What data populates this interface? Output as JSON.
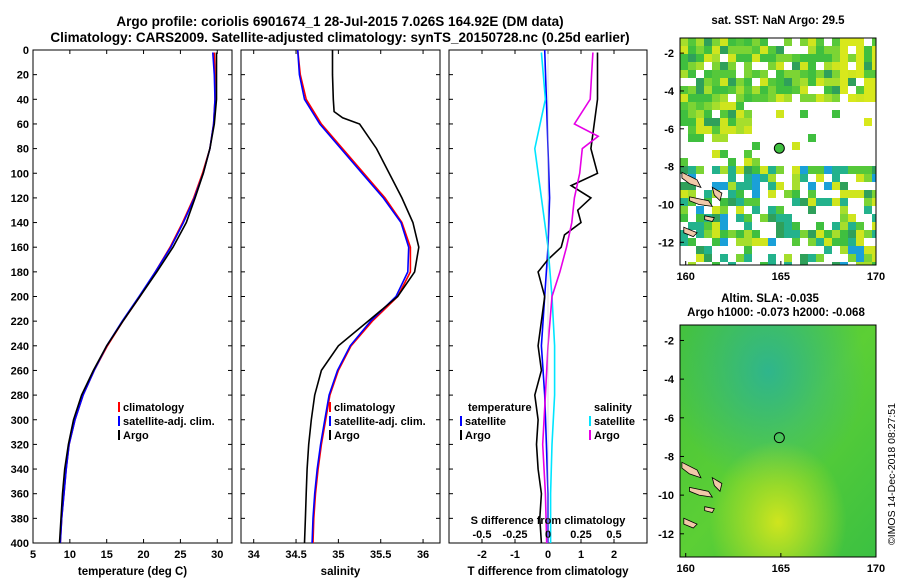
{
  "header": {
    "title_line1": "Argo profile: coriolis 6901674_1 28-Jul-2015 7.026S 164.92E (DM data)",
    "title_line2": "Climatology: CARS2009. Satellite-adjusted climatology: synTS_20150728.nc (0.25d earlier)"
  },
  "stamp": "©IMOS 14-Dec-2018 08:27:51",
  "colors": {
    "climatology": "#ff0000",
    "satellite": "#0000ff",
    "argo": "#000000",
    "s_satellite": "#00e5ff",
    "s_argo": "#e600e6"
  },
  "chart_data": [
    {
      "type": "line",
      "id": "temperature",
      "xlabel": "temperature (deg C)",
      "xlim": [
        5,
        32
      ],
      "ylim": [
        400,
        0
      ],
      "xticks": [
        5,
        10,
        15,
        20,
        25,
        30
      ],
      "yticks": [
        0,
        20,
        40,
        60,
        80,
        100,
        120,
        140,
        160,
        180,
        200,
        220,
        240,
        260,
        280,
        300,
        320,
        340,
        360,
        380,
        400
      ],
      "legend": [
        "climatology",
        "satellite-adj. clim.",
        "Argo"
      ],
      "series": [
        {
          "name": "climatology",
          "color": "#ff0000",
          "depth": [
            2,
            20,
            40,
            60,
            80,
            100,
            120,
            140,
            160,
            180,
            200,
            220,
            240,
            260,
            280,
            300,
            320,
            340,
            360,
            380,
            400
          ],
          "values": [
            29.6,
            29.7,
            29.7,
            29.5,
            29.0,
            28.0,
            26.8,
            25.3,
            23.6,
            21.6,
            19.5,
            17.2,
            15.1,
            13.3,
            11.8,
            10.7,
            9.9,
            9.5,
            9.2,
            8.9,
            8.7
          ]
        },
        {
          "name": "satellite",
          "color": "#0000ff",
          "depth": [
            2,
            20,
            40,
            60,
            80,
            100,
            120,
            140,
            160,
            180,
            200,
            220,
            240,
            260,
            280,
            300,
            320,
            340,
            360,
            380,
            400
          ],
          "values": [
            29.4,
            29.6,
            29.7,
            29.5,
            29.0,
            28.1,
            26.9,
            25.4,
            23.7,
            21.6,
            19.4,
            17.1,
            15.0,
            13.3,
            11.8,
            10.7,
            9.9,
            9.5,
            9.2,
            8.9,
            8.7
          ]
        },
        {
          "name": "Argo",
          "color": "#000000",
          "depth": [
            2,
            20,
            40,
            60,
            80,
            100,
            120,
            140,
            160,
            180,
            200,
            220,
            240,
            260,
            280,
            300,
            320,
            340,
            360,
            380,
            400
          ],
          "values": [
            29.9,
            29.9,
            29.9,
            29.6,
            29.0,
            28.1,
            27.0,
            25.8,
            24.0,
            21.8,
            19.5,
            17.2,
            15.0,
            13.2,
            11.6,
            10.5,
            9.8,
            9.3,
            9.0,
            8.8,
            8.6
          ]
        }
      ]
    },
    {
      "type": "line",
      "id": "salinity",
      "xlabel": "salinity",
      "xlim": [
        33.85,
        36.2
      ],
      "ylim": [
        400,
        0
      ],
      "xticks": [
        34,
        34.5,
        35,
        35.5,
        36
      ],
      "legend": [
        "climatology",
        "satellite-adj. clim.",
        "Argo"
      ],
      "series": [
        {
          "name": "climatology",
          "color": "#ff0000",
          "depth": [
            0,
            20,
            40,
            60,
            80,
            100,
            120,
            140,
            160,
            180,
            200,
            220,
            240,
            260,
            280,
            300,
            320,
            340,
            360,
            380,
            400
          ],
          "values": [
            34.52,
            34.55,
            34.62,
            34.8,
            35.05,
            35.3,
            35.55,
            35.75,
            35.85,
            35.85,
            35.7,
            35.4,
            35.15,
            35.0,
            34.9,
            34.85,
            34.8,
            34.76,
            34.73,
            34.71,
            34.7
          ]
        },
        {
          "name": "satellite",
          "color": "#0000ff",
          "depth": [
            0,
            20,
            40,
            60,
            80,
            100,
            120,
            140,
            160,
            180,
            200,
            220,
            240,
            260,
            280,
            300,
            320,
            340,
            360,
            380,
            400
          ],
          "values": [
            34.52,
            34.54,
            34.6,
            34.78,
            35.03,
            35.28,
            35.53,
            35.74,
            35.83,
            35.82,
            35.68,
            35.38,
            35.14,
            34.99,
            34.89,
            34.84,
            34.79,
            34.75,
            34.72,
            34.7,
            34.69
          ]
        },
        {
          "name": "Argo",
          "color": "#000000",
          "depth": [
            0,
            20,
            40,
            50,
            55,
            60,
            80,
            100,
            120,
            140,
            160,
            180,
            200,
            220,
            240,
            260,
            280,
            300,
            320,
            340,
            360,
            380,
            400
          ],
          "values": [
            34.93,
            34.93,
            34.94,
            34.95,
            35.05,
            35.25,
            35.45,
            35.6,
            35.75,
            35.88,
            35.95,
            35.9,
            35.7,
            35.35,
            35.0,
            34.8,
            34.72,
            34.68,
            34.65,
            34.63,
            34.62,
            34.61,
            34.6
          ]
        }
      ]
    },
    {
      "type": "line",
      "id": "difference",
      "xlabel": "T difference from climatology",
      "xlim": [
        -3,
        3
      ],
      "ylim": [
        400,
        0
      ],
      "xticks": [
        -2,
        -1,
        0,
        1,
        2
      ],
      "top_axis_label": "S difference from climatology",
      "top_ticks": [
        "-0.5",
        "-0.25",
        "0",
        "0.25",
        "0.5"
      ],
      "legend_left_title": "temperature",
      "legend_right_title": "salinity",
      "legend": [
        "satellite",
        "Argo",
        "satellite",
        "Argo"
      ],
      "series": [
        {
          "name": "T satellite",
          "color": "#0000ff",
          "depth": [
            0,
            40,
            80,
            120,
            160,
            200,
            240,
            280,
            320,
            360,
            400
          ],
          "values": [
            -0.1,
            -0.05,
            0.0,
            0.05,
            0.0,
            -0.1,
            -0.2,
            -0.1,
            -0.05,
            0.0,
            0.0
          ]
        },
        {
          "name": "T Argo",
          "color": "#000000",
          "depth": [
            2,
            20,
            40,
            60,
            80,
            100,
            110,
            120,
            130,
            140,
            150,
            160,
            170,
            180,
            200,
            220,
            240,
            260,
            280,
            300,
            320,
            340,
            360,
            380,
            400
          ],
          "values": [
            1.5,
            1.5,
            1.5,
            1.4,
            1.3,
            1.5,
            0.7,
            1.3,
            0.9,
            1.0,
            0.5,
            0.4,
            0.0,
            -0.3,
            -0.1,
            -0.2,
            -0.3,
            -0.2,
            -0.4,
            -0.3,
            -0.35,
            -0.3,
            -0.2,
            -0.25,
            -0.2
          ]
        },
        {
          "name": "S satellite",
          "color": "#00e5ff",
          "depth": [
            2,
            40,
            80,
            120,
            160,
            200,
            240,
            280,
            320,
            360,
            400
          ],
          "values": [
            -0.05,
            -0.02,
            -0.1,
            -0.05,
            0.0,
            0.03,
            0.05,
            0.05,
            0.03,
            0.02,
            0.02
          ]
        },
        {
          "name": "S Argo",
          "color": "#e600e6",
          "depth": [
            2,
            20,
            40,
            60,
            70,
            80,
            100,
            120,
            140,
            160,
            180,
            200,
            240,
            280,
            320,
            360,
            400
          ],
          "values": [
            0.34,
            0.33,
            0.32,
            0.2,
            0.38,
            0.26,
            0.24,
            0.2,
            0.18,
            0.14,
            0.09,
            0.03,
            0.0,
            -0.02,
            -0.04,
            -0.02,
            -0.01
          ]
        }
      ]
    },
    {
      "type": "heatmap",
      "id": "sst_map",
      "title": "sat. SST: NaN Argo: 29.5",
      "xlim": [
        159.7,
        170
      ],
      "ylim": [
        -13.2,
        -1.2
      ],
      "xticks": [
        160,
        165,
        170
      ],
      "yticks": [
        -2,
        -4,
        -6,
        -8,
        -10,
        -12
      ],
      "marker": {
        "lon": 164.92,
        "lat": -7.026
      }
    },
    {
      "type": "heatmap",
      "id": "sla_map",
      "title_line1": "Altim. SLA: -0.035",
      "title_line2": "Argo h1000: -0.073 h2000: -0.068",
      "xlim": [
        159.7,
        170
      ],
      "ylim": [
        -13.2,
        -1.2
      ],
      "xticks": [
        160,
        165,
        170
      ],
      "yticks": [
        -2,
        -4,
        -6,
        -8,
        -10,
        -12
      ],
      "marker": {
        "lon": 164.92,
        "lat": -7.026
      }
    }
  ]
}
